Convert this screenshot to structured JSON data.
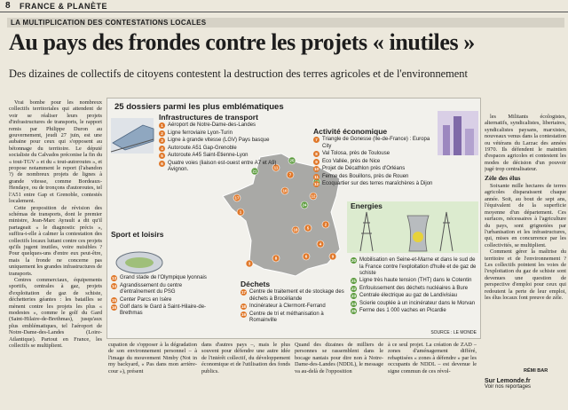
{
  "header": {
    "page": "8",
    "section": "FRANCE & PLANÈTE"
  },
  "kicker": "LA MULTIPLICATION DES CONTESTATIONS LOCALES",
  "title": "Au pays des frondes contre les projets « inutiles »",
  "subtitle": "Des dizaines de collectifs de citoyens contestent la destruction des terres agricoles et de l'environnement",
  "left_column": [
    "Vrai bombe pour les nombreux collectifs territoriales qui attendent de voir se réaliser leurs projets d'infrastructures de transports, le rapport remis par Philippe Duron au gouvernement, jeudi 27 juin, est une aubaine pour ceux qui s'opposent au bétonnage du territoire. Le député socialiste du Calvados préconise la fin du « tout-TGV » et du « tout-autoroutes », et propose notamment le report (l'abandon ?) de nombreux projets de lignes à grande vitesse, comme Bordeaux-Hendaye, ou de tronçons d'autoroutes, tel l'A51 entre Gap et Grenoble, contestés localement.",
    "Cette proposition de révision des schémas de transports, dont le premier ministre, Jean-Marc Ayrault a dit qu'il partageait « le diagnostic précis », suffira-t-elle à calmer la contestation des collectifs locaux luttant contre ces projets qu'ils jugent inutiles, voire nuisibles ? Pour quelques-uns d'entre eux peut-être, mais la fronde ne concerne pas uniquement les grandes infrastructures de transports.",
    "Centres commerciaux, équipements sportifs, centrales à gaz, projets d'exploitation de gaz de schiste, déchetteries géantes : les batailles se mènent contre les projets les plus « modestes », comme le golf du Gard (Saint-Hilaire-de-Brethmas), jusqu'aux plus emblématiques, tel l'aéroport de Notre-Dame-des-Landes (Loire-Atlantique). Partout en France, les collectifs se multiplient."
  ],
  "right_column": {
    "paragraphs": [
      "les Militants écologistes, alternatifs, syndicalistes, libertaires, syndicalistes paysans, marxistes, nouveaux venus dans la contestation ou vétérans du Larzac des années 1970. Ils défendent le maintien d'espaces agricoles et contestent les modes de décision d'un pouvoir jugé trop centralisateur."
    ],
    "heading": "Zèle des élus",
    "paragraphs2": [
      "Soixante mille hectares de terres agricoles disparaissent chaque année. Soit, au bout de sept ans, l'équivalent de la superficie moyenne d'un département. Ces surfaces, nécessaires à l'agriculture du pays, sont grignotées par l'urbanisation et les infrastructures, qui, mises en concurrence par les collectivités, se multiplient.",
      "Comment gérer la maîtrise du territoire et de l'environnement ? Les collectifs pointent les voies de l'exploitation du gaz de schiste sont devenues une question de perspective d'emploi pour ceux qui redoutent la perte de leur emploi, les élus locaux font preuve de zèle."
    ]
  },
  "infographic": {
    "title": "25 dossiers parmi les plus emblématiques",
    "transport": {
      "heading": "Infrastructures de transport",
      "items": [
        {
          "n": 1,
          "label": "Aéroport de Notre-Dame-des-Landes"
        },
        {
          "n": 2,
          "label": "Ligne ferroviaire Lyon-Turin"
        },
        {
          "n": 3,
          "label": "Ligne à grande vitesse (LGV) Pays basque"
        },
        {
          "n": 4,
          "label": "Autoroute A51 Gap-Grenoble"
        },
        {
          "n": 5,
          "label": "Autoroute A45 Saint-Etienne-Lyon"
        },
        {
          "n": 6,
          "label": "Quatre voies (liaison est-ouest entre A7 et A9) Avignon."
        }
      ]
    },
    "economy": {
      "heading": "Activité économique",
      "items": [
        {
          "n": 7,
          "label": "Triangle de Gonesse (Ile-de-France) : Europa City"
        },
        {
          "n": 8,
          "label": "Val Tolosa, près de Toulouse"
        },
        {
          "n": 9,
          "label": "Eco Vallée, près de Nice"
        },
        {
          "n": 10,
          "label": "Projet de Décathlon près d'Orléans"
        },
        {
          "n": 11,
          "label": "Ferme des Bouillons, près de Rouen"
        },
        {
          "n": 12,
          "label": "Ecoquartier sur des terres maraîchères à Dijon"
        }
      ]
    },
    "sport": {
      "heading": "Sport et loisirs",
      "items": [
        {
          "n": 13,
          "label": "Grand stade de l'Olympique lyonnais"
        },
        {
          "n": 14,
          "label": "Agrandissement du centre d'entraînement du PSG"
        },
        {
          "n": 15,
          "label": "Center Parcs en Isère"
        },
        {
          "n": 16,
          "label": "Golf dans le Gard à Saint-Hilaire-de-Brethmas"
        }
      ]
    },
    "waste": {
      "heading": "Déchets",
      "items": [
        {
          "n": 17,
          "label": "Centre de traitement et de stockage des déchets à Brocéliande"
        },
        {
          "n": 18,
          "label": "Incinérateur à Clermont-Ferrand"
        },
        {
          "n": 19,
          "label": "Centre de tri et méthanisation à Romainville"
        }
      ]
    },
    "energy": {
      "heading": "Energies",
      "items": [
        {
          "n": 20,
          "label": "Mobilisation en Seine-et-Marne et dans le sud de la France contre l'exploitation d'huile et de gaz de schiste"
        },
        {
          "n": 21,
          "label": "Ligne très haute tension (THT) dans le Cotentin"
        },
        {
          "n": 22,
          "label": "Enfouissement des déchets nucléaires à Bure"
        },
        {
          "n": 23,
          "label": "Centrale électrique au gaz de Landivisiau"
        },
        {
          "n": 24,
          "label": "Scierie couplée à un incinérateur dans le Morvan"
        },
        {
          "n": 25,
          "label": "Ferme des 1 000 vaches en Picardie"
        }
      ]
    },
    "source": "SOURCE : LE MONDE"
  },
  "bottom_columns": [
    "cupation de s'opposer à la dégradation de son environnement personnel – à l'image du mouvement Nimby (Not in my backyard, « Pas dans mon arrière-cour »), présent",
    "dans d'autres pays –, mais le plus souvent pour défendre une autre idée de l'intérêt collectif, du développement économique et de l'utilisation des fonds publics.",
    "Quand des dizaines de milliers de personnes se rassemblent dans le bocage nantais pour dire non à Notre-Dame-des-Landes (NDDL), le message va au-delà de l'opposition",
    "à ce seul projet. La création de ZAD – zones d'aménagement différé, rebaptisées « zones à défendre » par les occupants de NDDL – est devenue le signe commun de ces révol-"
  ],
  "signature": "RÉMI BAR",
  "promo": {
    "site": "Sur Lemonde.fr",
    "text": "Voir nos reportages"
  }
}
